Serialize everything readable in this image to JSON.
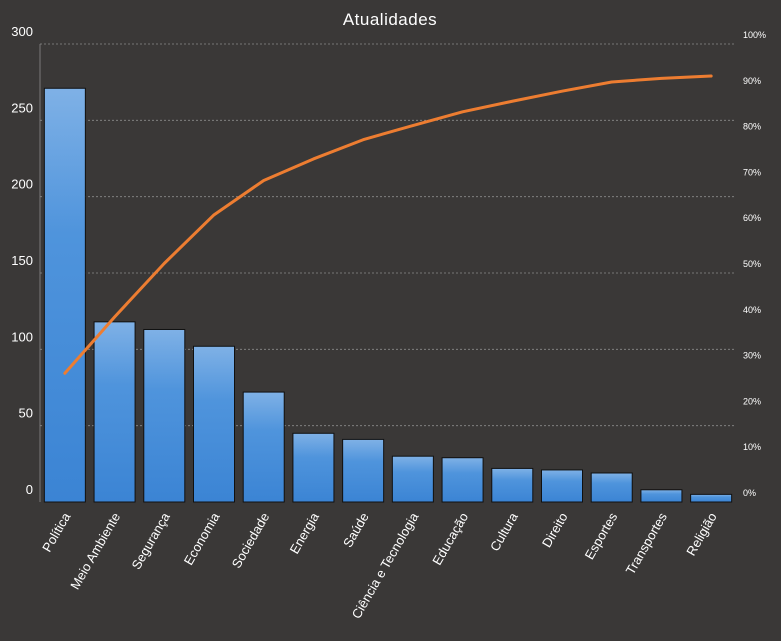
{
  "chart_data": {
    "type": "bar",
    "title": "Atualidades",
    "categories": [
      "Política",
      "Meio Ambiente",
      "Segurança",
      "Economia",
      "Sociedade",
      "Energia",
      "Saúde",
      "Ciência e Tecnologia",
      "Educação",
      "Cultura",
      "Direito",
      "Esportes",
      "Transportes",
      "Religião"
    ],
    "series": [
      {
        "type": "bar",
        "values": [
          271,
          118,
          113,
          102,
          72,
          45,
          41,
          30,
          29,
          22,
          21,
          19,
          8,
          5
        ]
      },
      {
        "type": "line",
        "axis": "secondary",
        "values": [
          28.1,
          40.4,
          52.1,
          62.7,
          70.2,
          74.9,
          79.1,
          82.2,
          85.2,
          87.5,
          89.7,
          91.7,
          92.5,
          93.0
        ]
      }
    ],
    "xlabel": "",
    "ylabel": "",
    "ylim": [
      0,
      300
    ],
    "y_ticks": [
      0,
      50,
      100,
      150,
      200,
      250,
      300
    ],
    "y2lim": [
      0,
      100
    ],
    "y2_ticks": [
      "0%",
      "10%",
      "20%",
      "30%",
      "40%",
      "50%",
      "60%",
      "70%",
      "80%",
      "90%",
      "100%"
    ],
    "grid": true,
    "legend": "none",
    "colors": {
      "bar": "#4a90d9",
      "line": "#ed7d31",
      "background": "#3a3837"
    }
  }
}
